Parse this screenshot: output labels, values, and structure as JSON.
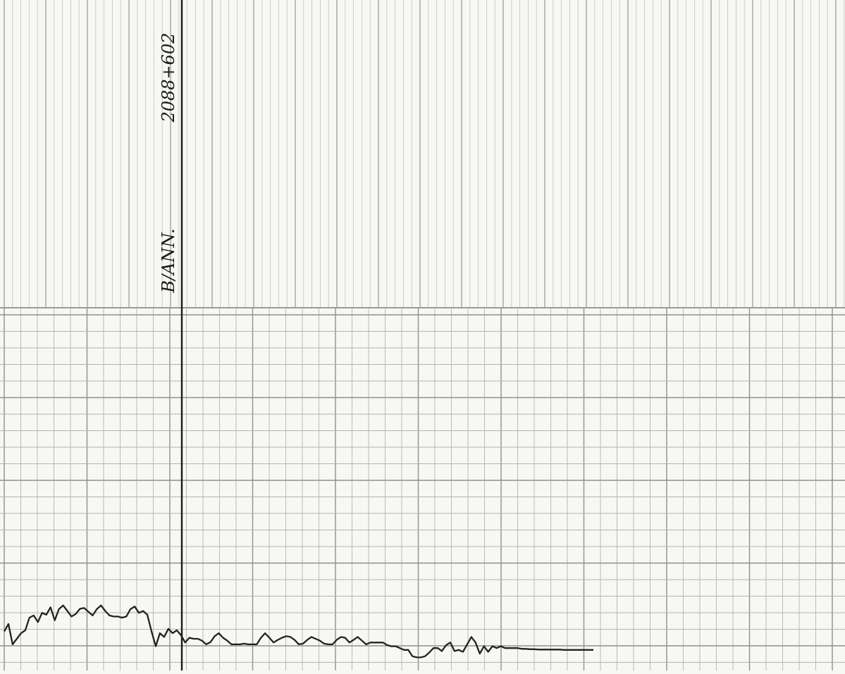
{
  "chart_data": {
    "type": "line",
    "title": "",
    "xlabel": "",
    "ylabel": "",
    "grid": true,
    "annotations": [
      {
        "text": "B/ANN.",
        "rotation": -90
      },
      {
        "text": "2088+602",
        "rotation": -90
      }
    ],
    "series": [
      {
        "values": [
          [
            0,
            0.55
          ],
          [
            1,
            0.75
          ],
          [
            2,
            0.2
          ],
          [
            3,
            0.35
          ],
          [
            4,
            0.5
          ],
          [
            5,
            0.58
          ],
          [
            6,
            0.92
          ],
          [
            7,
            0.98
          ],
          [
            8,
            0.8
          ],
          [
            9,
            1.05
          ],
          [
            10,
            1.0
          ],
          [
            11,
            1.2
          ],
          [
            12,
            0.85
          ],
          [
            13,
            1.15
          ],
          [
            14,
            1.25
          ],
          [
            15,
            1.1
          ],
          [
            16,
            0.95
          ],
          [
            17,
            1.02
          ],
          [
            18,
            1.16
          ],
          [
            19,
            1.18
          ],
          [
            20,
            1.08
          ],
          [
            21,
            0.98
          ],
          [
            22,
            1.15
          ],
          [
            23,
            1.25
          ],
          [
            24,
            1.1
          ],
          [
            25,
            0.98
          ],
          [
            26,
            0.95
          ],
          [
            27,
            0.95
          ],
          [
            28,
            0.92
          ],
          [
            29,
            0.95
          ],
          [
            30,
            1.15
          ],
          [
            31,
            1.22
          ],
          [
            32,
            1.05
          ],
          [
            33,
            1.1
          ],
          [
            34,
            1.0
          ],
          [
            35,
            0.55
          ],
          [
            36,
            0.15
          ],
          [
            37,
            0.5
          ],
          [
            38,
            0.4
          ],
          [
            39,
            0.62
          ],
          [
            40,
            0.5
          ],
          [
            41,
            0.58
          ],
          [
            42,
            0.45
          ],
          [
            43,
            0.25
          ],
          [
            44,
            0.38
          ],
          [
            45,
            0.35
          ],
          [
            46,
            0.35
          ],
          [
            47,
            0.3
          ],
          [
            48,
            0.2
          ],
          [
            49,
            0.26
          ],
          [
            50,
            0.42
          ],
          [
            51,
            0.5
          ],
          [
            52,
            0.38
          ],
          [
            53,
            0.3
          ],
          [
            54,
            0.2
          ],
          [
            55,
            0.2
          ],
          [
            56,
            0.2
          ],
          [
            57,
            0.22
          ],
          [
            58,
            0.2
          ],
          [
            59,
            0.2
          ],
          [
            60,
            0.2
          ],
          [
            61,
            0.38
          ],
          [
            62,
            0.5
          ],
          [
            63,
            0.38
          ],
          [
            64,
            0.25
          ],
          [
            65,
            0.32
          ],
          [
            66,
            0.38
          ],
          [
            67,
            0.42
          ],
          [
            68,
            0.4
          ],
          [
            69,
            0.32
          ],
          [
            70,
            0.2
          ],
          [
            71,
            0.22
          ],
          [
            72,
            0.32
          ],
          [
            73,
            0.4
          ],
          [
            74,
            0.35
          ],
          [
            75,
            0.3
          ],
          [
            76,
            0.22
          ],
          [
            77,
            0.2
          ],
          [
            78,
            0.2
          ],
          [
            79,
            0.32
          ],
          [
            80,
            0.4
          ],
          [
            81,
            0.38
          ],
          [
            82,
            0.25
          ],
          [
            83,
            0.32
          ],
          [
            84,
            0.4
          ],
          [
            85,
            0.3
          ],
          [
            86,
            0.2
          ],
          [
            87,
            0.25
          ],
          [
            88,
            0.25
          ],
          [
            89,
            0.25
          ],
          [
            90,
            0.25
          ],
          [
            91,
            0.18
          ],
          [
            92,
            0.15
          ],
          [
            93,
            0.15
          ],
          [
            94,
            0.1
          ],
          [
            95,
            0.05
          ],
          [
            96,
            0.05
          ],
          [
            97,
            -0.12
          ],
          [
            98,
            -0.15
          ],
          [
            99,
            -0.15
          ],
          [
            100,
            -0.12
          ],
          [
            101,
            -0.02
          ],
          [
            102,
            0.1
          ],
          [
            103,
            0.1
          ],
          [
            104,
            0.02
          ],
          [
            105,
            0.18
          ],
          [
            106,
            0.25
          ],
          [
            107,
            0.02
          ],
          [
            108,
            0.05
          ],
          [
            109,
            0.0
          ],
          [
            110,
            0.2
          ],
          [
            111,
            0.4
          ],
          [
            112,
            0.25
          ],
          [
            113,
            -0.05
          ],
          [
            114,
            0.15
          ],
          [
            115,
            0.0
          ],
          [
            116,
            0.15
          ],
          [
            117,
            0.1
          ],
          [
            118,
            0.15
          ],
          [
            119,
            0.1
          ],
          [
            120,
            0.1
          ],
          [
            121,
            0.1
          ],
          [
            122,
            0.1
          ],
          [
            123,
            0.08
          ],
          [
            124,
            0.08
          ],
          [
            125,
            0.07
          ],
          [
            126,
            0.07
          ],
          [
            127,
            0.06
          ],
          [
            128,
            0.06
          ],
          [
            129,
            0.06
          ],
          [
            130,
            0.06
          ],
          [
            131,
            0.06
          ],
          [
            132,
            0.06
          ],
          [
            133,
            0.05
          ],
          [
            134,
            0.05
          ],
          [
            135,
            0.05
          ],
          [
            136,
            0.05
          ],
          [
            137,
            0.05
          ],
          [
            138,
            0.05
          ],
          [
            139,
            0.05
          ],
          [
            140,
            0.05
          ]
        ]
      }
    ]
  }
}
